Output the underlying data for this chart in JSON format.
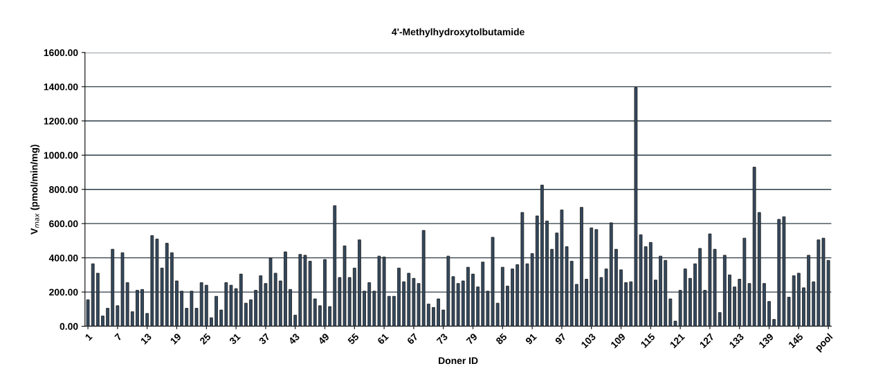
{
  "chart_data": {
    "type": "bar",
    "title": "4'-Methylhydroxytolbutamide",
    "xlabel": "Doner ID",
    "ylabel": "V$_{max}$ (pmol/min/mg)",
    "categories": [
      "1",
      null,
      null,
      null,
      null,
      null,
      "7",
      null,
      null,
      null,
      null,
      null,
      "13",
      null,
      null,
      null,
      null,
      null,
      "19",
      null,
      null,
      null,
      null,
      null,
      "25",
      null,
      null,
      null,
      null,
      null,
      "31",
      null,
      null,
      null,
      null,
      null,
      "37",
      null,
      null,
      null,
      null,
      null,
      "43",
      null,
      null,
      null,
      null,
      null,
      "49",
      null,
      null,
      null,
      null,
      null,
      "55",
      null,
      null,
      null,
      null,
      null,
      "61",
      null,
      null,
      null,
      null,
      null,
      "67",
      null,
      null,
      null,
      null,
      null,
      "73",
      null,
      null,
      null,
      null,
      null,
      "79",
      null,
      null,
      null,
      null,
      null,
      "85",
      null,
      null,
      null,
      null,
      null,
      "91",
      null,
      null,
      null,
      null,
      null,
      "97",
      null,
      null,
      null,
      null,
      null,
      "103",
      null,
      null,
      null,
      null,
      null,
      "109",
      null,
      null,
      null,
      null,
      null,
      "115",
      null,
      null,
      null,
      null,
      null,
      "121",
      null,
      null,
      null,
      null,
      null,
      "127",
      null,
      null,
      null,
      null,
      null,
      "133",
      null,
      null,
      null,
      null,
      null,
      "139",
      null,
      null,
      null,
      null,
      null,
      "145",
      null,
      null,
      null,
      null,
      null,
      "pool"
    ],
    "values": [
      155,
      365,
      310,
      60,
      105,
      450,
      120,
      430,
      255,
      85,
      210,
      215,
      75,
      530,
      510,
      340,
      485,
      430,
      265,
      205,
      105,
      205,
      105,
      255,
      240,
      50,
      175,
      95,
      255,
      240,
      220,
      305,
      135,
      155,
      210,
      295,
      250,
      400,
      310,
      265,
      435,
      215,
      65,
      420,
      415,
      380,
      160,
      120,
      390,
      115,
      705,
      285,
      470,
      285,
      340,
      505,
      205,
      255,
      205,
      410,
      405,
      175,
      175,
      340,
      260,
      310,
      280,
      250,
      560,
      130,
      110,
      160,
      95,
      410,
      290,
      250,
      265,
      345,
      305,
      230,
      375,
      205,
      520,
      135,
      345,
      235,
      335,
      360,
      665,
      365,
      425,
      645,
      825,
      615,
      450,
      545,
      680,
      465,
      380,
      245,
      695,
      275,
      575,
      565,
      285,
      335,
      605,
      450,
      330,
      255,
      260,
      1395,
      535,
      465,
      490,
      270,
      410,
      385,
      160,
      30,
      210,
      335,
      280,
      365,
      455,
      210,
      540,
      450,
      80,
      415,
      300,
      230,
      275,
      515,
      250,
      930,
      665,
      250,
      145,
      40,
      625,
      640,
      170,
      295,
      310,
      225,
      415,
      260,
      505,
      515,
      385
    ],
    "color": "#34495e",
    "ylim": [
      0,
      1600
    ],
    "yticks": [
      {
        "value": 0,
        "label": "0.00"
      },
      {
        "value": 200,
        "label": "200.00"
      },
      {
        "value": 400,
        "label": "400.00"
      },
      {
        "value": 600,
        "label": "600.00"
      },
      {
        "value": 800,
        "label": "800.00"
      },
      {
        "value": 1000,
        "label": "1000.00"
      },
      {
        "value": 1200,
        "label": "1200.00"
      },
      {
        "value": 1400,
        "label": "1400.00"
      },
      {
        "value": 1600,
        "label": "1600.00"
      }
    ],
    "grid": "y"
  }
}
